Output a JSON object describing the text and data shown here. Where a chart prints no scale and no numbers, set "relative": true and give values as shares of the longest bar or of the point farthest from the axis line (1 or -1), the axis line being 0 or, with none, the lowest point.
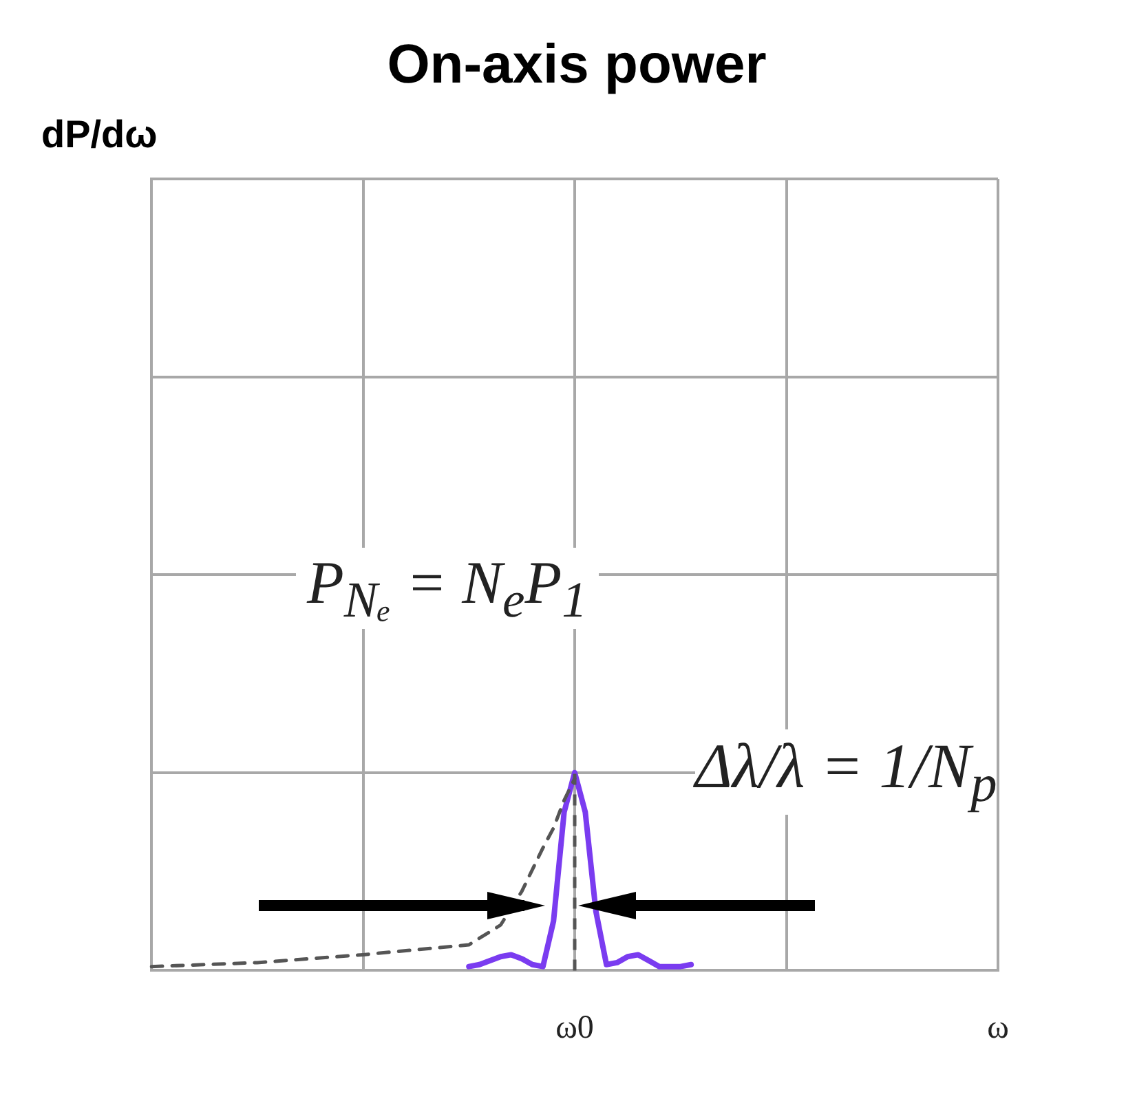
{
  "chart_data": {
    "type": "line",
    "title": "On-axis power",
    "relative": true,
    "categories": [
      null,
      null,
      null,
      null,
      null,
      null,
      null,
      null,
      null,
      null,
      null,
      null,
      null,
      null,
      null,
      null,
      null,
      null,
      null,
      null,
      null,
      null,
      null,
      null,
      null,
      null,
      null,
      null,
      null,
      null,
      null,
      null,
      null,
      null,
      null,
      null,
      null,
      null,
      null,
      null,
      "ω0",
      null,
      null,
      null,
      null,
      null,
      null,
      null,
      null,
      null,
      null,
      null,
      null,
      null,
      null,
      null,
      null,
      null,
      null,
      null,
      null,
      null,
      null,
      null,
      null,
      null,
      null,
      null,
      null,
      null,
      null,
      null,
      null,
      null,
      null,
      null,
      null,
      null,
      null,
      null,
      "ω"
    ],
    "grid": true,
    "legend": false,
    "marker": "none",
    "series": [
      {
        "color": "#555555",
        "line_style": "dashed",
        "values": [
          0.02,
          null,
          null,
          null,
          null,
          null,
          null,
          null,
          null,
          null,
          0.04,
          null,
          null,
          null,
          null,
          null,
          null,
          null,
          null,
          null,
          0.08,
          null,
          null,
          null,
          null,
          null,
          null,
          null,
          null,
          null,
          0.13,
          null,
          null,
          0.23,
          null,
          0.4,
          null,
          0.62,
          0.72,
          0.86,
          0.97,
          null,
          null,
          null,
          null,
          null,
          null,
          null,
          null,
          null,
          null,
          null,
          null,
          null,
          null,
          null,
          null,
          null,
          null,
          null,
          null,
          null,
          null,
          null,
          null,
          null,
          null,
          null,
          null,
          null,
          null,
          null,
          null,
          null,
          null,
          null,
          null,
          null,
          null,
          null,
          null
        ]
      },
      {
        "color": "#7a3cf0",
        "line_style": "solid",
        "values": [
          null,
          null,
          null,
          null,
          null,
          null,
          null,
          null,
          null,
          null,
          null,
          null,
          null,
          null,
          null,
          null,
          null,
          null,
          null,
          null,
          null,
          null,
          null,
          null,
          null,
          null,
          null,
          null,
          null,
          null,
          0.02,
          0.03,
          0.05,
          0.07,
          0.08,
          0.06,
          0.03,
          0.02,
          0.25,
          0.8,
          1.0,
          0.8,
          0.3,
          0.03,
          0.04,
          0.07,
          0.08,
          0.05,
          0.02,
          0.02,
          0.02,
          0.03,
          null,
          null,
          null,
          null,
          null,
          null,
          null,
          null,
          null,
          null,
          null,
          null,
          null,
          null,
          null,
          null,
          null,
          null,
          null,
          null,
          null,
          null,
          null,
          null,
          null,
          null,
          null,
          null,
          null
        ]
      }
    ],
    "ref_lines": [
      {
        "axis": "x",
        "value": "ω0",
        "color": "#555555",
        "line_style": "dashed"
      }
    ],
    "annotations": [
      "dP/dω",
      "P$_{Nₑ}$ = N$_{e}$P$_{1}$",
      "Δλ/λ = 1/N$_{p}$"
    ]
  }
}
